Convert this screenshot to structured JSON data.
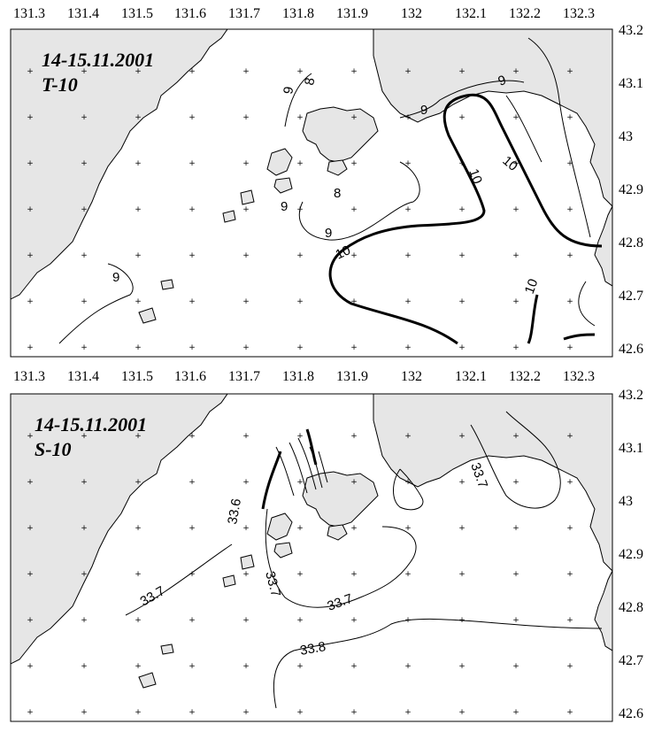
{
  "panels": [
    {
      "id": "temperature",
      "title_date": "14-15.11.2001",
      "title_var": "T-10",
      "lon_ticks": [
        "131.3",
        "131.4",
        "131.5",
        "131.6",
        "131.7",
        "131.8",
        "131.9",
        "132",
        "132.1",
        "132.2",
        "132.3"
      ],
      "lat_ticks": [
        "43.2",
        "43.1",
        "43",
        "42.9",
        "42.8",
        "42.7",
        "42.6"
      ],
      "contour_labels": [
        "9",
        "8",
        "9",
        "9",
        "8",
        "9",
        "9",
        "10",
        "10",
        "10",
        "10",
        "9"
      ]
    },
    {
      "id": "salinity",
      "title_date": "14-15.11.2001",
      "title_var": "S-10",
      "lat_ticks": [
        "43.2",
        "43.1",
        "43",
        "42.9",
        "42.8",
        "42.7",
        "42.6"
      ],
      "contour_labels": [
        "33.6",
        "33.7",
        "33.7",
        "33.7",
        "33.7",
        "33.8"
      ]
    }
  ]
}
